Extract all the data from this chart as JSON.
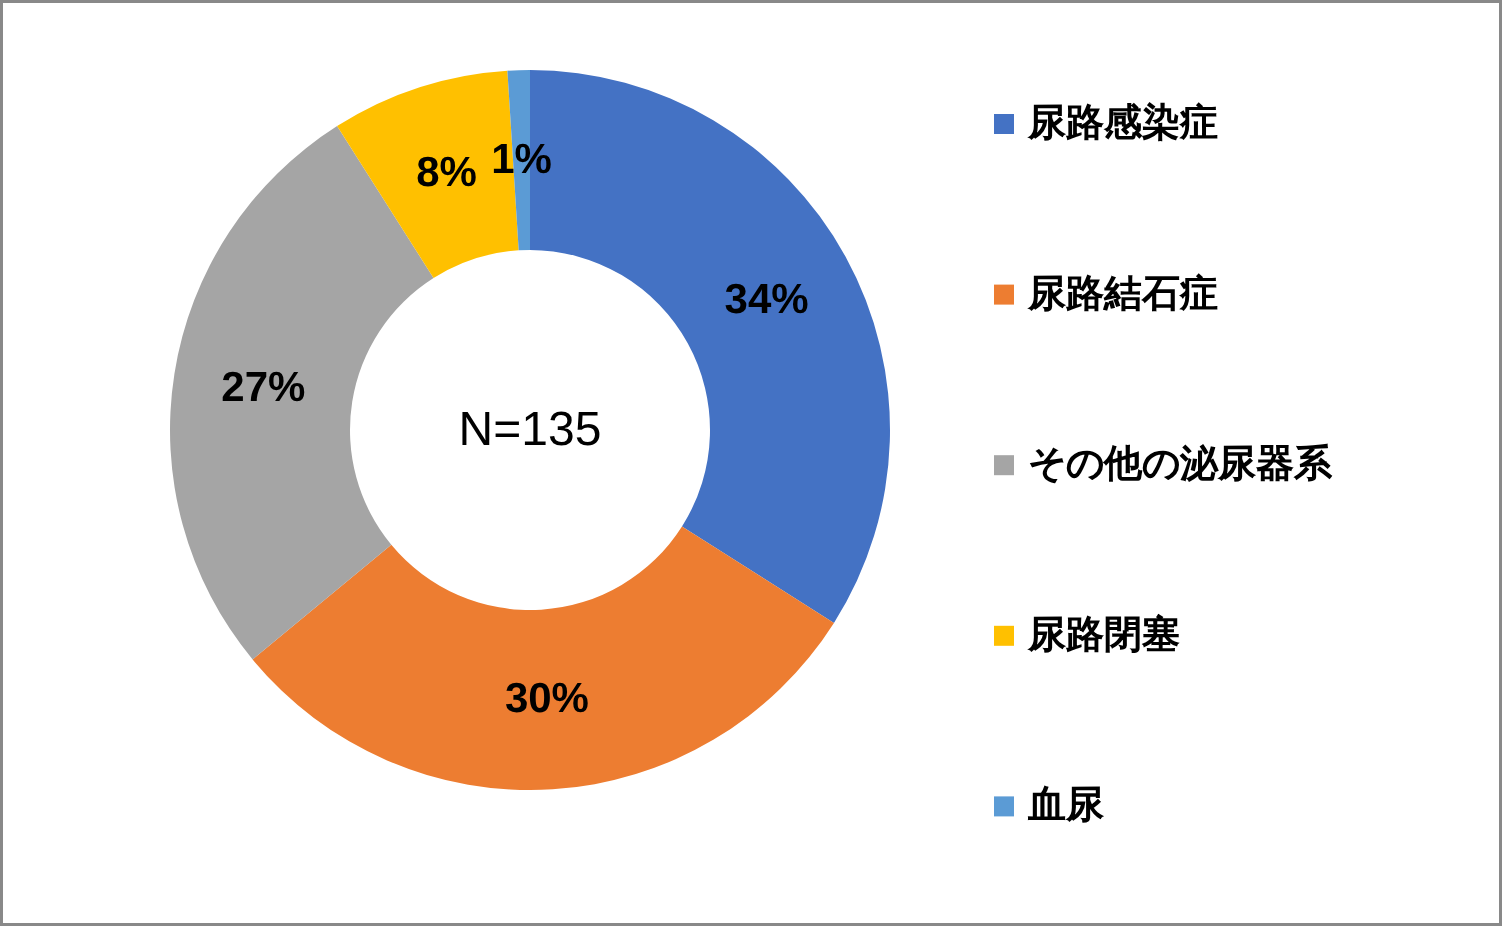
{
  "chart_data": {
    "type": "donut",
    "categories": [
      "尿路感染症",
      "尿路結石症",
      "その他の泌尿器系",
      "尿路閉塞",
      "血尿"
    ],
    "values": [
      34,
      30,
      27,
      8,
      1
    ],
    "colors": [
      "#4472c4",
      "#ed7d31",
      "#a5a5a5",
      "#ffc000",
      "#5b9bd5"
    ],
    "value_labels": [
      "34%",
      "30%",
      "27%",
      "8%",
      "1%"
    ],
    "annotations": [
      "N=135"
    ],
    "legend": "right"
  }
}
